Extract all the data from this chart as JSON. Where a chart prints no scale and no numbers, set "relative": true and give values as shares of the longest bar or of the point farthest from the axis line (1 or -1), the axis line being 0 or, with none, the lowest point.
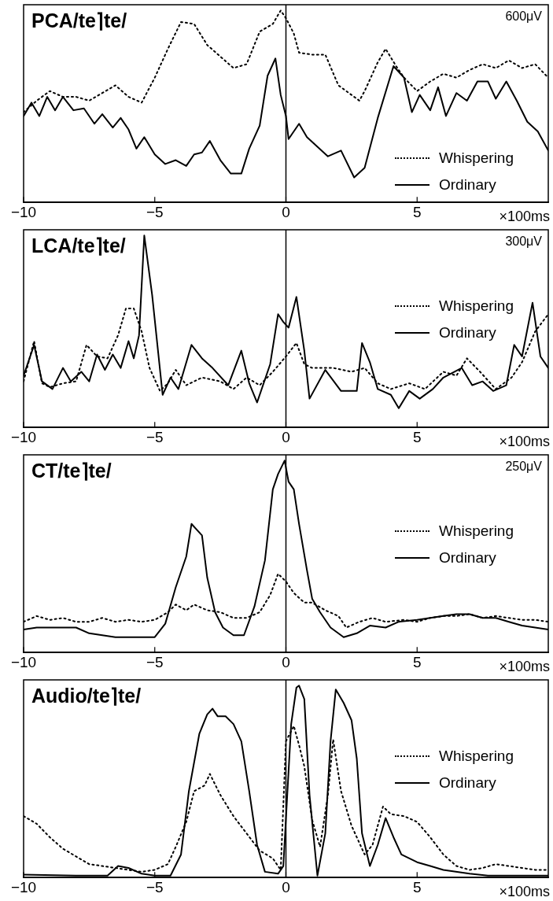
{
  "chart_data": [
    {
      "type": "line",
      "title": "PCA/te⌉te/",
      "annotations": [
        "600μV"
      ],
      "xlabel": "×100ms",
      "relative": true,
      "xlim": [
        -10,
        10
      ],
      "xticks": [
        -10,
        -5,
        0,
        5
      ],
      "grid": false,
      "legend": "bottom right",
      "marker": "none",
      "ref_lines": [
        {
          "axis": "x",
          "value": 0,
          "color": "#000000"
        }
      ],
      "series": [
        {
          "name": "Whispering",
          "color": "#000000",
          "line_style": "dotted",
          "x": [
            -10,
            -9.5,
            -9,
            -8.5,
            -8,
            -7.5,
            -7,
            -6.5,
            -6,
            -5.5,
            -5,
            -4.5,
            -4,
            -3.5,
            -3,
            -2.5,
            -2,
            -1.5,
            -1,
            -0.5,
            -0.2,
            0,
            0.3,
            0.5,
            1,
            1.5,
            2,
            2.5,
            2.8,
            3,
            3.5,
            3.8,
            4.2,
            4.5,
            5,
            5.5,
            6,
            6.5,
            7,
            7.5,
            8,
            8.5,
            9,
            9.5,
            10
          ],
          "values": [
            0.47,
            0.53,
            0.58,
            0.55,
            0.55,
            0.53,
            0.57,
            0.61,
            0.55,
            0.52,
            0.65,
            0.8,
            0.94,
            0.93,
            0.82,
            0.76,
            0.7,
            0.72,
            0.89,
            0.93,
            1,
            0.96,
            0.88,
            0.78,
            0.77,
            0.77,
            0.61,
            0.56,
            0.53,
            0.58,
            0.73,
            0.8,
            0.71,
            0.65,
            0.58,
            0.63,
            0.67,
            0.65,
            0.69,
            0.72,
            0.7,
            0.74,
            0.7,
            0.72,
            0.65
          ]
        },
        {
          "name": "Ordinary",
          "color": "#000000",
          "line_style": "solid",
          "x": [
            -10,
            -9.7,
            -9.4,
            -9.1,
            -8.8,
            -8.5,
            -8.1,
            -7.7,
            -7.3,
            -7,
            -6.6,
            -6.3,
            -6,
            -5.7,
            -5.4,
            -5,
            -4.6,
            -4.2,
            -3.8,
            -3.5,
            -3.2,
            -2.9,
            -2.5,
            -2.1,
            -1.7,
            -1.4,
            -1,
            -0.7,
            -0.4,
            -0.2,
            0,
            0.1,
            0.5,
            0.8,
            1.2,
            1.6,
            2.1,
            2.6,
            3,
            3.5,
            4.1,
            4.5,
            4.8,
            5.1,
            5.5,
            5.8,
            6.1,
            6.5,
            6.9,
            7.3,
            7.7,
            8,
            8.4,
            8.8,
            9.2,
            9.6,
            10
          ],
          "values": [
            0.45,
            0.52,
            0.45,
            0.55,
            0.48,
            0.55,
            0.48,
            0.49,
            0.41,
            0.46,
            0.39,
            0.44,
            0.38,
            0.28,
            0.34,
            0.25,
            0.2,
            0.22,
            0.19,
            0.25,
            0.26,
            0.32,
            0.22,
            0.15,
            0.15,
            0.28,
            0.4,
            0.66,
            0.75,
            0.56,
            0.45,
            0.33,
            0.41,
            0.34,
            0.29,
            0.24,
            0.27,
            0.13,
            0.18,
            0.44,
            0.71,
            0.65,
            0.47,
            0.56,
            0.48,
            0.6,
            0.45,
            0.57,
            0.53,
            0.63,
            0.63,
            0.54,
            0.63,
            0.53,
            0.42,
            0.37,
            0.27
          ]
        }
      ]
    },
    {
      "type": "line",
      "title": "LCA/te⌉te/",
      "annotations": [
        "300μV"
      ],
      "xlabel": "×100ms",
      "relative": true,
      "xlim": [
        -10,
        10
      ],
      "xticks": [
        -10,
        -5,
        0,
        5
      ],
      "grid": false,
      "legend": "right",
      "marker": "none",
      "ref_lines": [
        {
          "axis": "x",
          "value": 0,
          "color": "#000000"
        }
      ],
      "series": [
        {
          "name": "Whispering",
          "color": "#000000",
          "line_style": "dotted",
          "x": [
            -10,
            -9.6,
            -9.3,
            -9,
            -8.5,
            -8,
            -7.6,
            -7.2,
            -6.8,
            -6.4,
            -6.1,
            -5.8,
            -5.5,
            -5.2,
            -4.8,
            -4.5,
            -4.2,
            -3.8,
            -3.2,
            -2.5,
            -2,
            -1.5,
            -1,
            -0.5,
            0,
            0.4,
            0.7,
            1,
            1.8,
            2.5,
            3,
            3.5,
            4,
            4.7,
            5.3,
            6,
            6.5,
            6.9,
            7.4,
            8,
            8.6,
            9,
            9.5,
            10
          ],
          "values": [
            0.24,
            0.45,
            0.23,
            0.21,
            0.23,
            0.24,
            0.43,
            0.37,
            0.36,
            0.48,
            0.62,
            0.62,
            0.5,
            0.31,
            0.19,
            0.23,
            0.3,
            0.22,
            0.26,
            0.24,
            0.2,
            0.26,
            0.22,
            0.29,
            0.37,
            0.44,
            0.33,
            0.31,
            0.31,
            0.29,
            0.31,
            0.23,
            0.2,
            0.23,
            0.2,
            0.29,
            0.27,
            0.36,
            0.29,
            0.2,
            0.26,
            0.34,
            0.5,
            0.59
          ]
        },
        {
          "name": "Ordinary",
          "color": "#000000",
          "line_style": "solid",
          "x": [
            -10,
            -9.6,
            -9.3,
            -8.9,
            -8.5,
            -8.2,
            -7.8,
            -7.5,
            -7.2,
            -6.9,
            -6.6,
            -6.3,
            -6,
            -5.8,
            -5.6,
            -5.4,
            -5.1,
            -4.9,
            -4.7,
            -4.4,
            -4.1,
            -3.6,
            -3.2,
            -2.8,
            -2.2,
            -1.7,
            -1.4,
            -1.1,
            -0.6,
            -0.3,
            -0.1,
            0.1,
            0.4,
            0.7,
            0.9,
            1.5,
            2.1,
            2.7,
            2.9,
            3.2,
            3.5,
            4,
            4.3,
            4.7,
            5.1,
            5.6,
            6,
            6.7,
            7.1,
            7.5,
            7.9,
            8.4,
            8.7,
            9,
            9.4,
            9.7,
            10
          ],
          "values": [
            0.27,
            0.43,
            0.24,
            0.2,
            0.31,
            0.24,
            0.29,
            0.24,
            0.38,
            0.3,
            0.38,
            0.31,
            0.45,
            0.36,
            0.48,
            1,
            0.69,
            0.43,
            0.17,
            0.26,
            0.2,
            0.43,
            0.36,
            0.31,
            0.22,
            0.4,
            0.23,
            0.13,
            0.33,
            0.59,
            0.55,
            0.52,
            0.68,
            0.4,
            0.15,
            0.3,
            0.19,
            0.19,
            0.44,
            0.34,
            0.2,
            0.17,
            0.1,
            0.19,
            0.15,
            0.2,
            0.26,
            0.31,
            0.22,
            0.24,
            0.19,
            0.22,
            0.43,
            0.37,
            0.65,
            0.37,
            0.31
          ]
        }
      ]
    },
    {
      "type": "line",
      "title": "CT/te⌉te/",
      "annotations": [
        "250μV"
      ],
      "xlabel": "×100ms",
      "relative": true,
      "xlim": [
        -10,
        10
      ],
      "xticks": [
        -10,
        -5,
        0,
        5
      ],
      "grid": false,
      "legend": "right",
      "marker": "none",
      "ref_lines": [
        {
          "axis": "x",
          "value": 0,
          "color": "#000000"
        }
      ],
      "series": [
        {
          "name": "Whispering",
          "color": "#000000",
          "line_style": "dotted",
          "x": [
            -10,
            -9.5,
            -9,
            -8.5,
            -8,
            -7.5,
            -7,
            -6.5,
            -6,
            -5.5,
            -5,
            -4.5,
            -4.2,
            -3.8,
            -3.5,
            -3,
            -2.5,
            -2,
            -1.5,
            -1,
            -0.6,
            -0.3,
            0,
            0.3,
            0.7,
            1,
            1.5,
            2,
            2.3,
            2.8,
            3.3,
            3.8,
            4.5,
            5,
            5.5,
            6,
            6.5,
            7,
            7.5,
            8,
            8.5,
            9,
            9.5,
            10
          ],
          "values": [
            0.16,
            0.19,
            0.17,
            0.18,
            0.16,
            0.16,
            0.18,
            0.16,
            0.17,
            0.16,
            0.17,
            0.21,
            0.25,
            0.22,
            0.25,
            0.22,
            0.21,
            0.18,
            0.18,
            0.21,
            0.3,
            0.41,
            0.37,
            0.31,
            0.26,
            0.26,
            0.22,
            0.19,
            0.13,
            0.16,
            0.18,
            0.16,
            0.17,
            0.16,
            0.18,
            0.19,
            0.19,
            0.2,
            0.18,
            0.19,
            0.18,
            0.17,
            0.17,
            0.16
          ]
        },
        {
          "name": "Ordinary",
          "color": "#000000",
          "line_style": "solid",
          "x": [
            -10,
            -9.5,
            -9,
            -8.5,
            -8,
            -7.5,
            -7,
            -6.5,
            -6,
            -5.5,
            -5,
            -4.6,
            -4.2,
            -3.8,
            -3.6,
            -3.4,
            -3.2,
            -3,
            -2.7,
            -2.4,
            -2,
            -1.6,
            -1.2,
            -0.8,
            -0.5,
            -0.3,
            -0.05,
            0.1,
            0.3,
            0.5,
            0.8,
            1,
            1.3,
            1.7,
            2.2,
            2.7,
            3.2,
            3.8,
            4.3,
            5,
            5.5,
            6,
            6.5,
            7,
            7.5,
            8,
            8.5,
            9,
            9.5,
            10
          ],
          "values": [
            0.12,
            0.13,
            0.13,
            0.13,
            0.13,
            0.1,
            0.09,
            0.08,
            0.08,
            0.08,
            0.08,
            0.15,
            0.34,
            0.5,
            0.67,
            0.64,
            0.61,
            0.39,
            0.21,
            0.13,
            0.09,
            0.09,
            0.24,
            0.48,
            0.85,
            0.93,
            1,
            0.89,
            0.85,
            0.67,
            0.43,
            0.28,
            0.21,
            0.13,
            0.08,
            0.1,
            0.14,
            0.13,
            0.16,
            0.17,
            0.18,
            0.19,
            0.2,
            0.2,
            0.18,
            0.18,
            0.16,
            0.14,
            0.13,
            0.12
          ]
        }
      ]
    },
    {
      "type": "line",
      "title": "Audio/te⌉te/",
      "xlabel": "×100ms",
      "relative": true,
      "xlim": [
        -10,
        10
      ],
      "xticks": [
        -10,
        -5,
        0,
        5
      ],
      "grid": false,
      "legend": "right",
      "marker": "none",
      "ref_lines": [
        {
          "axis": "x",
          "value": 0,
          "color": "#000000"
        }
      ],
      "series": [
        {
          "name": "Whispering",
          "color": "#000000",
          "line_style": "dotted",
          "x": [
            -10,
            -9.5,
            -9,
            -8.5,
            -8,
            -7.5,
            -7,
            -6.5,
            -6,
            -5.5,
            -5,
            -4.5,
            -4.2,
            -3.8,
            -3.5,
            -3.1,
            -2.9,
            -2.5,
            -2,
            -1.5,
            -1,
            -0.5,
            -0.2,
            0,
            0.3,
            0.5,
            0.7,
            1,
            1.3,
            1.6,
            1.8,
            2.1,
            2.5,
            3,
            3.3,
            3.7,
            4,
            4.5,
            5,
            5.5,
            6,
            6.5,
            7,
            7.5,
            8,
            8.5,
            9,
            9.5,
            10
          ],
          "values": [
            0.32,
            0.28,
            0.21,
            0.15,
            0.11,
            0.07,
            0.06,
            0.05,
            0.04,
            0.03,
            0.04,
            0.07,
            0.16,
            0.29,
            0.45,
            0.48,
            0.54,
            0.43,
            0.32,
            0.23,
            0.14,
            0.1,
            0.04,
            0.71,
            0.79,
            0.69,
            0.58,
            0.3,
            0.16,
            0.43,
            0.72,
            0.45,
            0.27,
            0.12,
            0.17,
            0.37,
            0.33,
            0.32,
            0.29,
            0.21,
            0.12,
            0.06,
            0.04,
            0.05,
            0.07,
            0.06,
            0.05,
            0.04,
            0.04
          ]
        },
        {
          "name": "Ordinary",
          "color": "#000000",
          "line_style": "solid",
          "x": [
            -10,
            -8,
            -6.8,
            -6.4,
            -6,
            -5.5,
            -5,
            -4.4,
            -4,
            -3.7,
            -3.3,
            -3,
            -2.8,
            -2.6,
            -2.3,
            -2,
            -1.7,
            -1.4,
            -1.1,
            -0.8,
            -0.3,
            -0.1,
            0.05,
            0.2,
            0.4,
            0.5,
            0.7,
            0.9,
            1.2,
            1.5,
            1.7,
            1.9,
            2.2,
            2.5,
            2.7,
            2.9,
            3.2,
            3.5,
            3.8,
            4.1,
            4.4,
            5,
            5.5,
            6,
            7,
            7.7,
            8.5,
            10
          ],
          "values": [
            0.015,
            0.01,
            0.01,
            0.06,
            0.05,
            0.02,
            0.01,
            0.01,
            0.12,
            0.45,
            0.75,
            0.85,
            0.88,
            0.84,
            0.84,
            0.8,
            0.71,
            0.45,
            0.17,
            0.03,
            0.02,
            0.06,
            0.43,
            0.8,
            0.99,
            1,
            0.93,
            0.43,
            0.01,
            0.23,
            0.71,
            0.98,
            0.91,
            0.82,
            0.62,
            0.23,
            0.06,
            0.17,
            0.31,
            0.21,
            0.12,
            0.08,
            0.06,
            0.04,
            0.02,
            0.01,
            0.01,
            0.01
          ]
        }
      ]
    }
  ]
}
